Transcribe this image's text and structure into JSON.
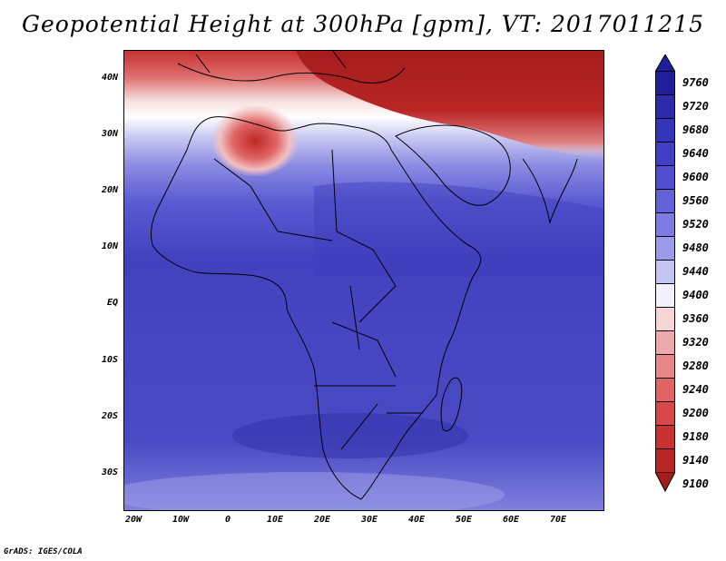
{
  "title": "Geopotential Height at 300hPa [gpm], VT: 2017011215",
  "credit": "GrADS: IGES/COLA",
  "lat_labels": [
    "40N",
    "30N",
    "20N",
    "10N",
    "EQ",
    "10S",
    "20S",
    "30S"
  ],
  "lon_labels": [
    "20W",
    "10W",
    "0",
    "10E",
    "20E",
    "30E",
    "40E",
    "50E",
    "60E",
    "70E"
  ],
  "legend": {
    "levels": [
      "9760",
      "9720",
      "9680",
      "9640",
      "9600",
      "9560",
      "9520",
      "9480",
      "9440",
      "9400",
      "9360",
      "9320",
      "9280",
      "9240",
      "9200",
      "9180",
      "9140",
      "9100"
    ],
    "colors": [
      "#1f1f9c",
      "#2a2aab",
      "#3535ba",
      "#4040c4",
      "#4f4fcf",
      "#6262d9",
      "#7b7be2",
      "#9b9be9",
      "#c4c4f2",
      "#f2f2ff",
      "#f5d5d5",
      "#eeaaaa",
      "#e88686",
      "#e06464",
      "#d94848",
      "#ca3232",
      "#b82525",
      "#a51d1d"
    ]
  },
  "map_colors": {
    "deep_blue": "#3a3ab8",
    "mid_blue": "#4b4bc6",
    "light_blue": "#8a8ae2",
    "pale": "#e6e6fa",
    "white": "#ffffff",
    "pink": "#f2b4b4",
    "red": "#d23c3c",
    "dark_red": "#a81c1c"
  }
}
